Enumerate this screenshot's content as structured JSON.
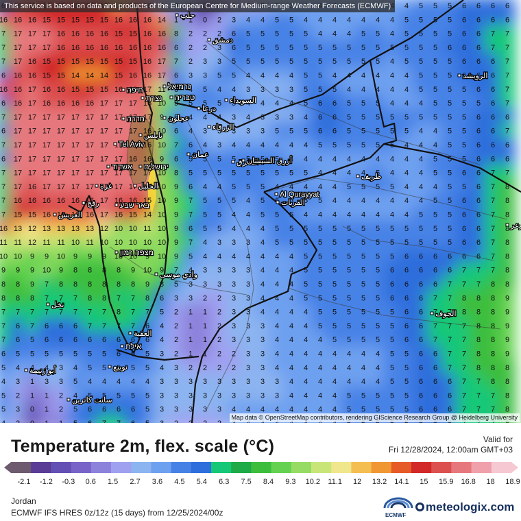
{
  "notice": "This service is based on data and products of the European Centre for Medium-range Weather Forecasts (ECMWF)",
  "attribution": "Map data © OpenStreetMap contributors, rendering GIScience Research Group @ Heidelberg University",
  "title": "Temperature 2m, flex. scale (°C)",
  "valid_label": "Valid for",
  "valid_time": "Fri 12/28/2024, 12:00am GMT+03",
  "region": "Jordan",
  "model_run": "ECMWF IFS HRES 0z/12z (15 days) from 12/25/2024/00z",
  "brand": "meteologix.com",
  "ecmwf_logo_text": "ECMWF",
  "colorbar": {
    "ticks": [
      "-2.1",
      "-1.2",
      "-0.3",
      "0.6",
      "1.5",
      "2.7",
      "3.6",
      "4.5",
      "5.4",
      "6.3",
      "7.5",
      "8.4",
      "9.3",
      "10.2",
      "11.1",
      "12",
      "13.2",
      "14.1",
      "15",
      "15.9",
      "16.8",
      "18",
      "18.9"
    ],
    "colors": [
      "#6e5a6e",
      "#5a3c96",
      "#6450b4",
      "#7864c8",
      "#8c82dc",
      "#a0a0f0",
      "#8cb4f0",
      "#6ea0f0",
      "#4682e6",
      "#2d6edc",
      "#14c878",
      "#1eaa46",
      "#3cbe3c",
      "#64d250",
      "#96dc64",
      "#c8e678",
      "#f0e68c",
      "#f5be50",
      "#f09632",
      "#e65a28",
      "#d22828",
      "#dc5050",
      "#e6787d",
      "#f0a0aa",
      "#f5c8d2"
    ]
  },
  "map_labels": {
    "tel_aviv": "Tel Aviv",
    "al_qurayyat": "Al Qurayyat",
    "halab": "حلب",
    "dimashq": "دمشق",
    "al_ruwayshid": "الرويشد",
    "haifa": "חיפה",
    "karmiel": "כרמיאל",
    "nazareth": "נצרת",
    "tiberias": "טבריה",
    "as_suwayda": "السويداء",
    "daraa": "درعا",
    "hadera": "חדרה",
    "ajloun": "عجلون",
    "nablus": "نابلس",
    "az_zarqa": "الزرقاء",
    "amman": "عمان",
    "al_mafraq": "المفرق",
    "ashdod": "אשדוד",
    "jerusalem": "ירושלים",
    "azraq": "أزرق الشيشان",
    "tarif": "طريف",
    "gaza": "غزة",
    "hebron": "الخليل",
    "al_qurayyat_ar": "القريات",
    "rafah": "رفح",
    "beersheba": "באר שבע",
    "al_arish": "العريش",
    "arar": "عرعر",
    "mitzpe_ramon": "מצפה רמון",
    "wadi_musa": "وادي موسى",
    "nakhl": "نخل",
    "al_jawf": "الجوف",
    "al_aqaba": "العقبة",
    "eilat": "אילת",
    "abu_zenima": "أبو زنيمة",
    "nuweiba": "نويبع",
    "saint_catherine": "سانت كاترين"
  },
  "grid_values": [
    [
      6,
      16,
      15,
      15,
      15,
      15,
      15,
      15,
      14,
      16,
      16,
      2,
      3,
      1,
      -1,
      -1,
      1,
      2,
      2,
      3,
      3,
      4,
      4,
      4,
      4,
      3,
      4,
      4,
      4,
      5,
      5,
      5,
      6,
      6,
      6,
      6
    ],
    [
      16,
      16,
      16,
      15,
      15,
      15,
      15,
      15,
      16,
      16,
      16,
      14,
      1,
      1,
      0,
      2,
      3,
      4,
      4,
      5,
      5,
      4,
      4,
      4,
      4,
      4,
      4,
      4,
      5,
      5,
      5,
      5,
      6,
      6,
      6,
      6
    ],
    [
      7,
      17,
      17,
      17,
      16,
      16,
      16,
      16,
      15,
      15,
      16,
      16,
      8,
      2,
      2,
      2,
      6,
      5,
      5,
      5,
      5,
      5,
      4,
      4,
      4,
      5,
      5,
      4,
      5,
      5,
      5,
      5,
      6,
      6,
      7,
      7
    ],
    [
      7,
      17,
      17,
      17,
      16,
      16,
      16,
      16,
      16,
      16,
      16,
      16,
      6,
      2,
      2,
      3,
      6,
      5,
      5,
      5,
      5,
      5,
      5,
      5,
      5,
      5,
      5,
      5,
      5,
      5,
      5,
      6,
      6,
      6,
      7,
      7
    ],
    [
      7,
      17,
      16,
      15,
      15,
      15,
      15,
      15,
      15,
      15,
      16,
      17,
      7,
      2,
      3,
      3,
      5,
      5,
      5,
      5,
      5,
      5,
      5,
      5,
      5,
      5,
      5,
      4,
      5,
      5,
      5,
      5,
      6,
      6,
      6,
      7
    ],
    [
      6,
      16,
      16,
      15,
      15,
      14,
      14,
      14,
      15,
      16,
      16,
      17,
      6,
      3,
      3,
      5,
      5,
      4,
      4,
      4,
      4,
      5,
      5,
      4,
      4,
      4,
      4,
      4,
      4,
      5,
      5,
      5,
      6,
      6,
      6,
      7
    ],
    [
      16,
      16,
      17,
      16,
      16,
      15,
      15,
      15,
      16,
      16,
      17,
      11,
      6,
      4,
      5,
      4,
      4,
      3,
      3,
      3,
      3,
      5,
      5,
      5,
      4,
      4,
      4,
      4,
      4,
      5,
      5,
      5,
      5,
      6,
      6,
      7
    ],
    [
      6,
      16,
      17,
      16,
      16,
      16,
      16,
      17,
      17,
      17,
      16,
      10,
      9,
      5,
      5,
      5,
      5,
      4,
      4,
      4,
      4,
      5,
      6,
      6,
      5,
      5,
      5,
      4,
      4,
      4,
      5,
      5,
      5,
      5,
      6,
      7
    ],
    [
      7,
      17,
      17,
      17,
      17,
      17,
      17,
      17,
      17,
      17,
      17,
      9,
      5,
      4,
      4,
      4,
      3,
      4,
      3,
      3,
      3,
      4,
      6,
      6,
      5,
      5,
      5,
      5,
      5,
      5,
      5,
      5,
      5,
      6,
      6,
      6
    ],
    [
      6,
      17,
      17,
      17,
      17,
      17,
      17,
      17,
      17,
      17,
      16,
      10,
      6,
      4,
      3,
      3,
      3,
      3,
      3,
      5,
      5,
      5,
      6,
      6,
      5,
      5,
      5,
      5,
      5,
      4,
      4,
      5,
      5,
      6,
      6,
      7
    ],
    [
      7,
      17,
      17,
      17,
      17,
      17,
      17,
      17,
      17,
      17,
      16,
      10,
      7,
      6,
      4,
      3,
      4,
      4,
      4,
      4,
      4,
      4,
      5,
      5,
      5,
      5,
      5,
      5,
      4,
      4,
      4,
      5,
      5,
      6,
      6,
      6
    ],
    [
      6,
      17,
      17,
      17,
      17,
      17,
      17,
      17,
      17,
      16,
      16,
      9,
      6,
      5,
      5,
      5,
      5,
      5,
      5,
      5,
      4,
      4,
      4,
      4,
      4,
      4,
      4,
      4,
      4,
      4,
      5,
      5,
      5,
      6,
      6,
      6
    ],
    [
      7,
      17,
      17,
      17,
      17,
      17,
      17,
      17,
      17,
      17,
      17,
      10,
      8,
      5,
      5,
      5,
      5,
      5,
      5,
      5,
      5,
      5,
      4,
      4,
      4,
      4,
      5,
      4,
      4,
      4,
      5,
      5,
      6,
      6,
      7,
      7
    ],
    [
      7,
      17,
      16,
      17,
      17,
      17,
      17,
      17,
      17,
      17,
      17,
      10,
      9,
      6,
      4,
      4,
      5,
      5,
      5,
      4,
      4,
      4,
      4,
      4,
      5,
      5,
      5,
      5,
      4,
      4,
      4,
      5,
      5,
      6,
      7,
      8
    ],
    [
      7,
      16,
      16,
      16,
      16,
      16,
      16,
      17,
      16,
      16,
      15,
      10,
      9,
      7,
      5,
      5,
      5,
      4,
      5,
      6,
      5,
      5,
      5,
      4,
      4,
      4,
      4,
      4,
      4,
      4,
      5,
      5,
      6,
      6,
      7,
      8
    ],
    [
      7,
      15,
      15,
      16,
      16,
      16,
      16,
      17,
      16,
      15,
      14,
      10,
      9,
      7,
      5,
      5,
      4,
      4,
      5,
      5,
      5,
      4,
      4,
      4,
      4,
      4,
      4,
      4,
      4,
      5,
      5,
      5,
      6,
      6,
      7,
      8
    ],
    [
      16,
      13,
      12,
      13,
      13,
      13,
      13,
      12,
      10,
      10,
      11,
      10,
      9,
      6,
      5,
      5,
      4,
      4,
      4,
      5,
      5,
      5,
      5,
      5,
      5,
      5,
      5,
      5,
      5,
      5,
      5,
      5,
      6,
      6,
      7,
      8
    ],
    [
      11,
      11,
      12,
      11,
      11,
      10,
      11,
      10,
      10,
      10,
      10,
      10,
      9,
      7,
      4,
      3,
      3,
      3,
      4,
      5,
      5,
      5,
      5,
      5,
      5,
      5,
      5,
      5,
      5,
      5,
      5,
      5,
      6,
      6,
      7,
      8
    ],
    [
      10,
      10,
      9,
      9,
      10,
      9,
      9,
      9,
      10,
      10,
      9,
      10,
      9,
      5,
      4,
      4,
      4,
      4,
      4,
      4,
      4,
      5,
      5,
      5,
      5,
      5,
      5,
      5,
      6,
      6,
      6,
      6,
      6,
      6,
      7,
      8
    ],
    [
      9,
      9,
      9,
      10,
      9,
      8,
      8,
      8,
      8,
      9,
      10,
      9,
      7,
      4,
      3,
      3,
      3,
      3,
      4,
      4,
      4,
      5,
      5,
      5,
      5,
      5,
      5,
      6,
      6,
      6,
      6,
      6,
      7,
      7,
      7,
      8
    ],
    [
      8,
      8,
      9,
      7,
      8,
      8,
      8,
      8,
      8,
      8,
      9,
      8,
      5,
      3,
      3,
      3,
      3,
      3,
      4,
      4,
      4,
      5,
      5,
      5,
      5,
      5,
      5,
      6,
      6,
      6,
      6,
      7,
      7,
      7,
      8,
      8
    ],
    [
      8,
      8,
      8,
      7,
      7,
      7,
      8,
      8,
      7,
      7,
      8,
      6,
      3,
      3,
      2,
      2,
      3,
      3,
      4,
      4,
      4,
      5,
      5,
      5,
      5,
      5,
      5,
      6,
      6,
      6,
      7,
      7,
      8,
      8,
      8,
      9
    ],
    [
      7,
      7,
      7,
      7,
      7,
      7,
      7,
      7,
      8,
      7,
      7,
      5,
      2,
      1,
      1,
      2,
      3,
      3,
      4,
      4,
      4,
      4,
      5,
      5,
      5,
      5,
      5,
      5,
      6,
      6,
      7,
      7,
      8,
      8,
      8,
      9
    ],
    [
      7,
      6,
      7,
      6,
      6,
      6,
      7,
      7,
      7,
      7,
      6,
      4,
      2,
      1,
      1,
      2,
      3,
      3,
      3,
      4,
      4,
      4,
      5,
      5,
      5,
      5,
      5,
      5,
      6,
      6,
      7,
      7,
      7,
      8,
      8,
      9
    ],
    [
      7,
      6,
      5,
      6,
      6,
      6,
      6,
      6,
      6,
      6,
      6,
      4,
      2,
      1,
      1,
      2,
      3,
      3,
      3,
      4,
      4,
      4,
      4,
      5,
      5,
      5,
      5,
      5,
      6,
      6,
      7,
      7,
      7,
      8,
      8,
      9
    ],
    [
      6,
      5,
      5,
      5,
      5,
      5,
      5,
      5,
      6,
      6,
      5,
      3,
      2,
      1,
      1,
      2,
      2,
      3,
      3,
      4,
      4,
      4,
      4,
      4,
      4,
      4,
      4,
      5,
      5,
      6,
      6,
      7,
      7,
      8,
      8,
      9
    ],
    [
      5,
      4,
      4,
      4,
      3,
      4,
      5,
      5,
      5,
      5,
      5,
      4,
      3,
      2,
      2,
      2,
      2,
      3,
      3,
      4,
      4,
      4,
      4,
      4,
      4,
      4,
      4,
      5,
      5,
      6,
      6,
      7,
      7,
      8,
      8,
      8
    ],
    [
      4,
      3,
      1,
      3,
      3,
      5,
      4,
      4,
      4,
      4,
      4,
      3,
      3,
      3,
      3,
      3,
      3,
      3,
      3,
      3,
      4,
      4,
      4,
      4,
      4,
      4,
      4,
      5,
      5,
      6,
      6,
      6,
      7,
      7,
      8,
      8
    ],
    [
      5,
      2,
      1,
      1,
      2,
      4,
      5,
      5,
      5,
      5,
      5,
      3,
      3,
      3,
      3,
      3,
      3,
      3,
      3,
      3,
      4,
      4,
      4,
      4,
      5,
      5,
      5,
      5,
      5,
      6,
      6,
      6,
      7,
      7,
      7,
      8
    ],
    [
      5,
      3,
      0,
      1,
      2,
      5,
      6,
      6,
      6,
      6,
      5,
      3,
      3,
      3,
      3,
      3,
      4,
      4,
      4,
      4,
      4,
      4,
      4,
      4,
      5,
      5,
      5,
      5,
      5,
      6,
      6,
      6,
      7,
      7,
      7,
      8
    ],
    [
      4,
      2,
      0,
      1,
      1,
      5,
      6,
      7,
      7,
      6,
      5,
      3,
      2,
      2,
      2,
      2,
      3,
      4,
      4,
      4,
      4,
      4,
      4,
      4,
      5,
      5,
      5,
      5,
      5,
      6,
      6,
      6,
      7,
      7,
      7,
      8
    ]
  ]
}
